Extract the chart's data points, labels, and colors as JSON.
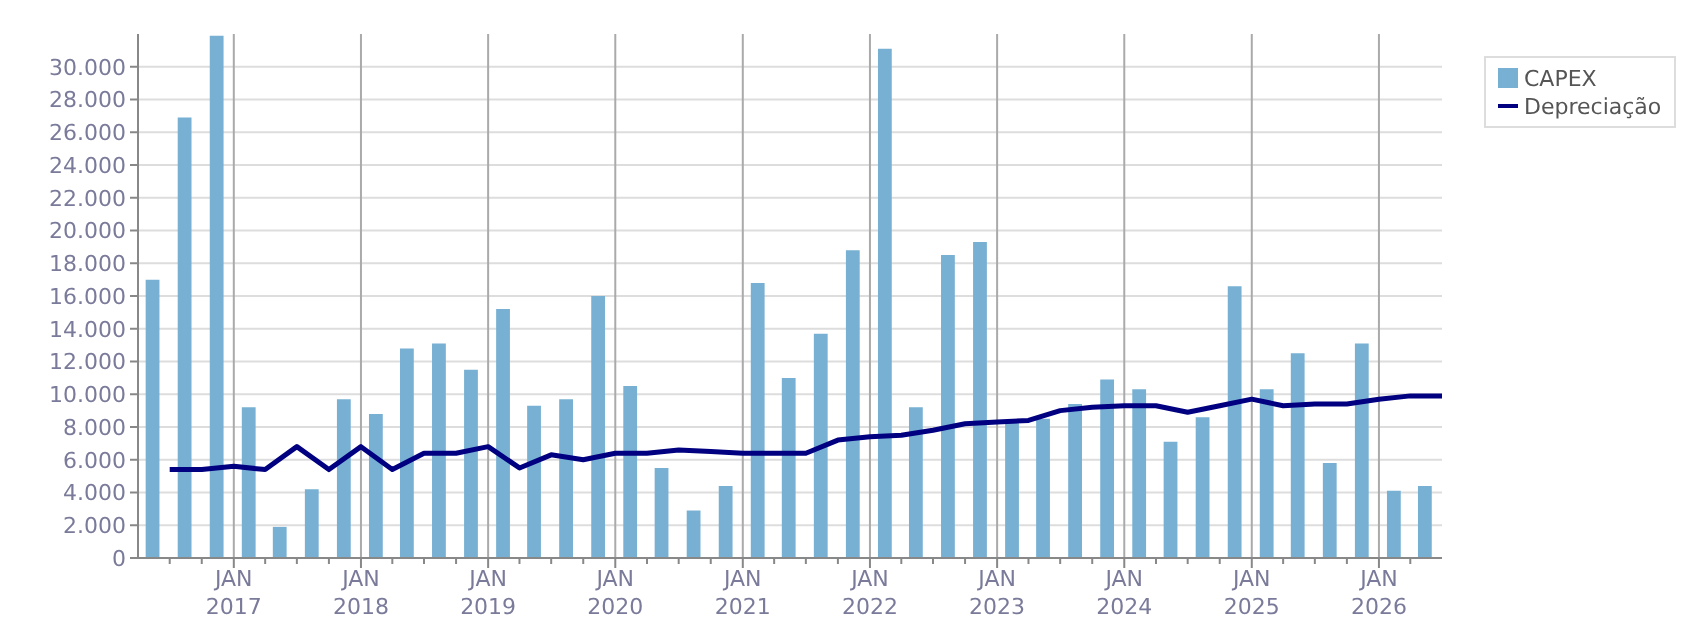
{
  "chart_data": {
    "type": "bar",
    "series": [
      {
        "name": "CAPEX",
        "color": "#77b0d3",
        "x": [
          "2016-05-15",
          "2016-08-15",
          "2016-11-15",
          "2017-02-15",
          "2017-05-15",
          "2017-08-15",
          "2017-11-15",
          "2018-02-15",
          "2018-05-15",
          "2018-08-15",
          "2018-11-15",
          "2019-02-15",
          "2019-05-15",
          "2019-08-15",
          "2019-11-15",
          "2020-02-15",
          "2020-05-15",
          "2020-08-15",
          "2020-11-15",
          "2021-02-15",
          "2021-05-15",
          "2021-08-15",
          "2021-11-15",
          "2022-02-15",
          "2022-05-15",
          "2022-08-15",
          "2022-11-15",
          "2023-02-15",
          "2023-05-15",
          "2023-08-15",
          "2023-11-15",
          "2024-02-15",
          "2024-05-15",
          "2024-08-15",
          "2024-11-15",
          "2025-02-15",
          "2025-05-15",
          "2025-08-15",
          "2025-11-15",
          "2026-02-15",
          "2026-05-15"
        ],
        "values": [
          17000,
          26900,
          31900,
          9200,
          1900,
          4200,
          9700,
          8800,
          12800,
          13100,
          11500,
          15200,
          9300,
          9700,
          16000,
          10500,
          5500,
          2900,
          4400,
          16800,
          11000,
          13700,
          18800,
          31100,
          9200,
          18500,
          19300,
          8300,
          8500,
          9400,
          10900,
          10300,
          7100,
          8600,
          16600,
          10300,
          12500,
          5800,
          13100,
          4100,
          4400
        ]
      },
      {
        "name": "Depreciação",
        "type": "line",
        "color": "#000080",
        "x": [
          "2016-07-01",
          "2016-10-01",
          "2017-01-01",
          "2017-04-01",
          "2017-07-01",
          "2017-10-01",
          "2018-01-01",
          "2018-04-01",
          "2018-07-01",
          "2018-10-01",
          "2019-01-01",
          "2019-04-01",
          "2019-07-01",
          "2019-10-01",
          "2020-01-01",
          "2020-04-01",
          "2020-07-01",
          "2020-10-01",
          "2021-01-01",
          "2021-04-01",
          "2021-07-01",
          "2021-10-01",
          "2022-01-01",
          "2022-04-01",
          "2022-07-01",
          "2022-10-01",
          "2023-01-01",
          "2023-04-01",
          "2023-07-01",
          "2023-10-01",
          "2024-01-01",
          "2024-04-01",
          "2024-07-01",
          "2024-10-01",
          "2025-01-01",
          "2025-04-01",
          "2025-07-01",
          "2025-10-01",
          "2026-01-01",
          "2026-04-01",
          "2026-07-01"
        ],
        "values": [
          5400,
          5400,
          5600,
          5400,
          6800,
          5400,
          6800,
          5400,
          6400,
          6400,
          6800,
          5500,
          6300,
          6000,
          6400,
          6400,
          6600,
          6500,
          6400,
          6400,
          6400,
          7200,
          7400,
          7500,
          7800,
          8200,
          8300,
          8400,
          9000,
          9200,
          9300,
          9300,
          8900,
          9300,
          9700,
          9300,
          9400,
          9400,
          9700,
          9900,
          9900
        ]
      }
    ],
    "xlim": [
      "2016-04-01",
      "2026-07-01"
    ],
    "xticks": [
      {
        "value": "2016-07-01",
        "label": null
      },
      {
        "value": "2016-10-01",
        "label": null
      },
      {
        "value": "2017-01-01",
        "label": "JAN 2017"
      },
      {
        "value": "2017-04-01",
        "label": null
      },
      {
        "value": "2017-07-01",
        "label": null
      },
      {
        "value": "2017-10-01",
        "label": null
      },
      {
        "value": "2018-01-01",
        "label": "JAN 2018"
      },
      {
        "value": "2018-04-01",
        "label": null
      },
      {
        "value": "2018-07-01",
        "label": null
      },
      {
        "value": "2018-10-01",
        "label": null
      },
      {
        "value": "2019-01-01",
        "label": "JAN 2019"
      },
      {
        "value": "2019-04-01",
        "label": null
      },
      {
        "value": "2019-07-01",
        "label": null
      },
      {
        "value": "2019-10-01",
        "label": null
      },
      {
        "value": "2020-01-01",
        "label": "JAN 2020"
      },
      {
        "value": "2020-04-01",
        "label": null
      },
      {
        "value": "2020-07-01",
        "label": null
      },
      {
        "value": "2020-10-01",
        "label": null
      },
      {
        "value": "2021-01-01",
        "label": "JAN 2021"
      },
      {
        "value": "2021-04-01",
        "label": null
      },
      {
        "value": "2021-07-01",
        "label": null
      },
      {
        "value": "2021-10-01",
        "label": null
      },
      {
        "value": "2022-01-01",
        "label": "JAN 2022"
      },
      {
        "value": "2022-04-01",
        "label": null
      },
      {
        "value": "2022-07-01",
        "label": null
      },
      {
        "value": "2022-10-01",
        "label": null
      },
      {
        "value": "2023-01-01",
        "label": "JAN 2023"
      },
      {
        "value": "2023-04-01",
        "label": null
      },
      {
        "value": "2023-07-01",
        "label": null
      },
      {
        "value": "2023-10-01",
        "label": null
      },
      {
        "value": "2024-01-01",
        "label": "JAN 2024"
      },
      {
        "value": "2024-04-01",
        "label": null
      },
      {
        "value": "2024-07-01",
        "label": null
      },
      {
        "value": "2024-10-01",
        "label": null
      },
      {
        "value": "2025-01-01",
        "label": "JAN 2025"
      },
      {
        "value": "2025-04-01",
        "label": null
      },
      {
        "value": "2025-07-01",
        "label": null
      },
      {
        "value": "2025-10-01",
        "label": null
      },
      {
        "value": "2026-01-01",
        "label": "JAN 2026"
      },
      {
        "value": "2026-04-01",
        "label": null
      }
    ],
    "ylim": [
      0,
      32000
    ],
    "yticks": [
      {
        "value": 0,
        "label": "0"
      },
      {
        "value": 2000,
        "label": "2.000"
      },
      {
        "value": 4000,
        "label": "4.000"
      },
      {
        "value": 6000,
        "label": "6.000"
      },
      {
        "value": 8000,
        "label": "8.000"
      },
      {
        "value": 10000,
        "label": "10.000"
      },
      {
        "value": 12000,
        "label": "12.000"
      },
      {
        "value": 14000,
        "label": "14.000"
      },
      {
        "value": 16000,
        "label": "16.000"
      },
      {
        "value": 18000,
        "label": "18.000"
      },
      {
        "value": 20000,
        "label": "20.000"
      },
      {
        "value": 22000,
        "label": "22.000"
      },
      {
        "value": 24000,
        "label": "24.000"
      },
      {
        "value": 26000,
        "label": "26.000"
      },
      {
        "value": 28000,
        "label": "28.000"
      },
      {
        "value": 30000,
        "label": "30.000"
      }
    ],
    "grid": true,
    "legend": "top right"
  }
}
